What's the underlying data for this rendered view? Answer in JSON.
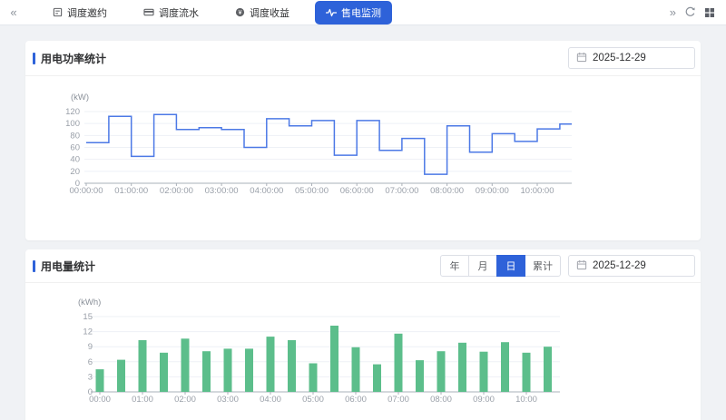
{
  "topbar": {
    "collapse_icon": "«",
    "expand_icon": "»",
    "tabs": [
      {
        "label": "调度邀约",
        "active": false
      },
      {
        "label": "调度流水",
        "active": false
      },
      {
        "label": "调度收益",
        "active": false
      },
      {
        "label": "售电监测",
        "active": true
      }
    ]
  },
  "power_section": {
    "title": "用电功率统计",
    "date": "2025-12-29"
  },
  "energy_section": {
    "title": "用电量统计",
    "date": "2025-12-29",
    "range_buttons": [
      {
        "label": "年",
        "active": false
      },
      {
        "label": "月",
        "active": false
      },
      {
        "label": "日",
        "active": true
      },
      {
        "label": "累计",
        "active": false
      }
    ]
  },
  "colors": {
    "accent_blue": "#2e62d9",
    "line_blue": "#4c79e6",
    "bar_green": "#5cbe8b",
    "axis_gray": "#999fa8",
    "grid_gray": "#eef1f6"
  },
  "chart_data": [
    {
      "type": "line",
      "subtype": "step",
      "title": "用电功率统计",
      "ylabel": "(kW)",
      "unit": "kW",
      "x": [
        "00:00",
        "00:30",
        "01:00",
        "01:30",
        "02:00",
        "02:30",
        "03:00",
        "03:30",
        "04:00",
        "04:30",
        "05:00",
        "05:30",
        "06:00",
        "06:30",
        "07:00",
        "07:30",
        "08:00",
        "08:30",
        "09:00",
        "09:30",
        "10:00",
        "10:30"
      ],
      "values": [
        68,
        112,
        45,
        115,
        90,
        93,
        90,
        60,
        108,
        96,
        105,
        47,
        105,
        55,
        75,
        15,
        96,
        52,
        83,
        70,
        91,
        99
      ],
      "xticks": [
        "00:00:00",
        "01:00:00",
        "02:00:00",
        "03:00:00",
        "04:00:00",
        "05:00:00",
        "06:00:00",
        "07:00:00",
        "08:00:00",
        "09:00:00",
        "10:00:00"
      ],
      "yticks": [
        0,
        20,
        40,
        60,
        80,
        100,
        120
      ],
      "ylim": [
        0,
        120
      ],
      "grid": true,
      "legend": "none"
    },
    {
      "type": "bar",
      "title": "用电量统计",
      "ylabel": "(kWh)",
      "unit": "kWh",
      "x": [
        "00:00",
        "00:30",
        "01:00",
        "01:30",
        "02:00",
        "02:30",
        "03:00",
        "03:30",
        "04:00",
        "04:30",
        "05:00",
        "05:30",
        "06:00",
        "06:30",
        "07:00",
        "07:30",
        "08:00",
        "08:30",
        "09:00",
        "09:30",
        "10:00",
        "10:30"
      ],
      "values": [
        4.5,
        6.4,
        10.3,
        7.8,
        10.6,
        8.1,
        8.6,
        8.6,
        11,
        10.3,
        5.7,
        13.2,
        8.9,
        5.5,
        11.6,
        6.3,
        8.1,
        9.8,
        8,
        9.9,
        7.8,
        9
      ],
      "xticks": [
        "00:00",
        "01:00",
        "02:00",
        "03:00",
        "04:00",
        "05:00",
        "06:00",
        "07:00",
        "08:00",
        "09:00",
        "10:00"
      ],
      "yticks": [
        0,
        3,
        6,
        9,
        12,
        15
      ],
      "ylim": [
        0,
        15
      ],
      "grid": true,
      "legend": "none"
    }
  ]
}
